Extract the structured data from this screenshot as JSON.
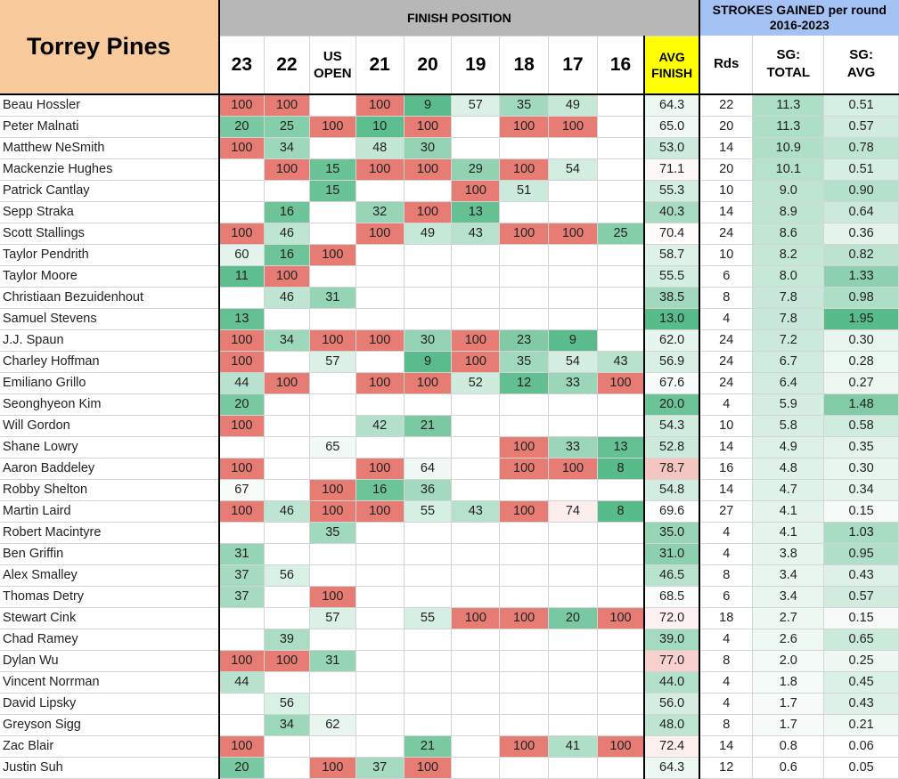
{
  "title": "Torrey Pines",
  "group_finish": "FINISH POSITION",
  "group_sg": "STROKES GAINED per round\n2016-2023",
  "year_columns": [
    "23",
    "22",
    "US\nOPEN",
    "21",
    "20",
    "19",
    "18",
    "17",
    "16"
  ],
  "avg_header": "AVG\nFINISH",
  "rds_header": "Rds",
  "sg_total_header": "SG:\nTOTAL",
  "sg_avg_header": "SG:\nAVG",
  "colors": {
    "title_bg": "#f9cb9c",
    "finish_header_bg": "#b7b7b7",
    "sg_header_bg": "#a4c2f4",
    "avg_header_bg": "#ffff00",
    "missed_cut_red": "#e67c73",
    "best_green": "#57bb8a"
  },
  "rows": [
    {
      "name": "Beau Hossler",
      "finishes": [
        "100",
        "100",
        "",
        "100",
        "9",
        "57",
        "35",
        "49",
        ""
      ],
      "avg": "64.3",
      "rds": "22",
      "sg_total": "11.3",
      "sg_avg": "0.51"
    },
    {
      "name": "Peter Malnati",
      "finishes": [
        "20",
        "25",
        "100",
        "10",
        "100",
        "",
        "100",
        "100",
        ""
      ],
      "avg": "65.0",
      "rds": "20",
      "sg_total": "11.3",
      "sg_avg": "0.57"
    },
    {
      "name": "Matthew NeSmith",
      "finishes": [
        "100",
        "34",
        "",
        "48",
        "30",
        "",
        "",
        "",
        ""
      ],
      "avg": "53.0",
      "rds": "14",
      "sg_total": "10.9",
      "sg_avg": "0.78"
    },
    {
      "name": "Mackenzie Hughes",
      "finishes": [
        "",
        "100",
        "15",
        "100",
        "100",
        "29",
        "100",
        "54",
        ""
      ],
      "avg": "71.1",
      "rds": "20",
      "sg_total": "10.1",
      "sg_avg": "0.51"
    },
    {
      "name": "Patrick Cantlay",
      "finishes": [
        "",
        "",
        "15",
        "",
        "",
        "100",
        "51",
        "",
        ""
      ],
      "avg": "55.3",
      "rds": "10",
      "sg_total": "9.0",
      "sg_avg": "0.90"
    },
    {
      "name": "Sepp Straka",
      "finishes": [
        "",
        "16",
        "",
        "32",
        "100",
        "13",
        "",
        "",
        ""
      ],
      "avg": "40.3",
      "rds": "14",
      "sg_total": "8.9",
      "sg_avg": "0.64"
    },
    {
      "name": "Scott Stallings",
      "finishes": [
        "100",
        "46",
        "",
        "100",
        "49",
        "43",
        "100",
        "100",
        "25"
      ],
      "avg": "70.4",
      "rds": "24",
      "sg_total": "8.6",
      "sg_avg": "0.36"
    },
    {
      "name": "Taylor Pendrith",
      "finishes": [
        "60",
        "16",
        "100",
        "",
        "",
        "",
        "",
        "",
        ""
      ],
      "avg": "58.7",
      "rds": "10",
      "sg_total": "8.2",
      "sg_avg": "0.82"
    },
    {
      "name": "Taylor Moore",
      "finishes": [
        "11",
        "100",
        "",
        "",
        "",
        "",
        "",
        "",
        ""
      ],
      "avg": "55.5",
      "rds": "6",
      "sg_total": "8.0",
      "sg_avg": "1.33"
    },
    {
      "name": "Christiaan Bezuidenhout",
      "finishes": [
        "",
        "46",
        "31",
        "",
        "",
        "",
        "",
        "",
        ""
      ],
      "avg": "38.5",
      "rds": "8",
      "sg_total": "7.8",
      "sg_avg": "0.98"
    },
    {
      "name": "Samuel Stevens",
      "finishes": [
        "13",
        "",
        "",
        "",
        "",
        "",
        "",
        "",
        ""
      ],
      "avg": "13.0",
      "rds": "4",
      "sg_total": "7.8",
      "sg_avg": "1.95"
    },
    {
      "name": "J.J. Spaun",
      "finishes": [
        "100",
        "34",
        "100",
        "100",
        "30",
        "100",
        "23",
        "9",
        ""
      ],
      "avg": "62.0",
      "rds": "24",
      "sg_total": "7.2",
      "sg_avg": "0.30"
    },
    {
      "name": "Charley Hoffman",
      "finishes": [
        "100",
        "",
        "57",
        "",
        "9",
        "100",
        "35",
        "54",
        "43"
      ],
      "avg": "56.9",
      "rds": "24",
      "sg_total": "6.7",
      "sg_avg": "0.28"
    },
    {
      "name": "Emiliano Grillo",
      "finishes": [
        "44",
        "100",
        "",
        "100",
        "100",
        "52",
        "12",
        "33",
        "100"
      ],
      "avg": "67.6",
      "rds": "24",
      "sg_total": "6.4",
      "sg_avg": "0.27"
    },
    {
      "name": "Seonghyeon Kim",
      "finishes": [
        "20",
        "",
        "",
        "",
        "",
        "",
        "",
        "",
        ""
      ],
      "avg": "20.0",
      "rds": "4",
      "sg_total": "5.9",
      "sg_avg": "1.48"
    },
    {
      "name": "Will Gordon",
      "finishes": [
        "100",
        "",
        "",
        "42",
        "21",
        "",
        "",
        "",
        ""
      ],
      "avg": "54.3",
      "rds": "10",
      "sg_total": "5.8",
      "sg_avg": "0.58"
    },
    {
      "name": "Shane Lowry",
      "finishes": [
        "",
        "",
        "65",
        "",
        "",
        "",
        "100",
        "33",
        "13"
      ],
      "avg": "52.8",
      "rds": "14",
      "sg_total": "4.9",
      "sg_avg": "0.35"
    },
    {
      "name": "Aaron Baddeley",
      "finishes": [
        "100",
        "",
        "",
        "100",
        "64",
        "",
        "100",
        "100",
        "8"
      ],
      "avg": "78.7",
      "rds": "16",
      "sg_total": "4.8",
      "sg_avg": "0.30"
    },
    {
      "name": "Robby Shelton",
      "finishes": [
        "67",
        "",
        "100",
        "16",
        "36",
        "",
        "",
        "",
        ""
      ],
      "avg": "54.8",
      "rds": "14",
      "sg_total": "4.7",
      "sg_avg": "0.34"
    },
    {
      "name": "Martin Laird",
      "finishes": [
        "100",
        "46",
        "100",
        "100",
        "55",
        "43",
        "100",
        "74",
        "8"
      ],
      "avg": "69.6",
      "rds": "27",
      "sg_total": "4.1",
      "sg_avg": "0.15"
    },
    {
      "name": "Robert Macintyre",
      "finishes": [
        "",
        "",
        "35",
        "",
        "",
        "",
        "",
        "",
        ""
      ],
      "avg": "35.0",
      "rds": "4",
      "sg_total": "4.1",
      "sg_avg": "1.03"
    },
    {
      "name": "Ben Griffin",
      "finishes": [
        "31",
        "",
        "",
        "",
        "",
        "",
        "",
        "",
        ""
      ],
      "avg": "31.0",
      "rds": "4",
      "sg_total": "3.8",
      "sg_avg": "0.95"
    },
    {
      "name": "Alex Smalley",
      "finishes": [
        "37",
        "56",
        "",
        "",
        "",
        "",
        "",
        "",
        ""
      ],
      "avg": "46.5",
      "rds": "8",
      "sg_total": "3.4",
      "sg_avg": "0.43"
    },
    {
      "name": "Thomas Detry",
      "finishes": [
        "37",
        "",
        "100",
        "",
        "",
        "",
        "",
        "",
        ""
      ],
      "avg": "68.5",
      "rds": "6",
      "sg_total": "3.4",
      "sg_avg": "0.57"
    },
    {
      "name": "Stewart Cink",
      "finishes": [
        "",
        "",
        "57",
        "",
        "55",
        "100",
        "100",
        "20",
        "100"
      ],
      "avg": "72.0",
      "rds": "18",
      "sg_total": "2.7",
      "sg_avg": "0.15"
    },
    {
      "name": "Chad Ramey",
      "finishes": [
        "",
        "39",
        "",
        "",
        "",
        "",
        "",
        "",
        ""
      ],
      "avg": "39.0",
      "rds": "4",
      "sg_total": "2.6",
      "sg_avg": "0.65"
    },
    {
      "name": "Dylan Wu",
      "finishes": [
        "100",
        "100",
        "31",
        "",
        "",
        "",
        "",
        "",
        ""
      ],
      "avg": "77.0",
      "rds": "8",
      "sg_total": "2.0",
      "sg_avg": "0.25"
    },
    {
      "name": "Vincent Norrman",
      "finishes": [
        "44",
        "",
        "",
        "",
        "",
        "",
        "",
        "",
        ""
      ],
      "avg": "44.0",
      "rds": "4",
      "sg_total": "1.8",
      "sg_avg": "0.45"
    },
    {
      "name": "David Lipsky",
      "finishes": [
        "",
        "56",
        "",
        "",
        "",
        "",
        "",
        "",
        ""
      ],
      "avg": "56.0",
      "rds": "4",
      "sg_total": "1.7",
      "sg_avg": "0.43"
    },
    {
      "name": "Greyson Sigg",
      "finishes": [
        "",
        "34",
        "62",
        "",
        "",
        "",
        "",
        "",
        ""
      ],
      "avg": "48.0",
      "rds": "8",
      "sg_total": "1.7",
      "sg_avg": "0.21"
    },
    {
      "name": "Zac Blair",
      "finishes": [
        "100",
        "",
        "",
        "",
        "21",
        "",
        "100",
        "41",
        "100"
      ],
      "avg": "72.4",
      "rds": "14",
      "sg_total": "0.8",
      "sg_avg": "0.06"
    },
    {
      "name": "Justin Suh",
      "finishes": [
        "20",
        "",
        "100",
        "37",
        "100",
        "",
        "",
        "",
        ""
      ],
      "avg": "64.3",
      "rds": "12",
      "sg_total": "0.6",
      "sg_avg": "0.05"
    }
  ]
}
